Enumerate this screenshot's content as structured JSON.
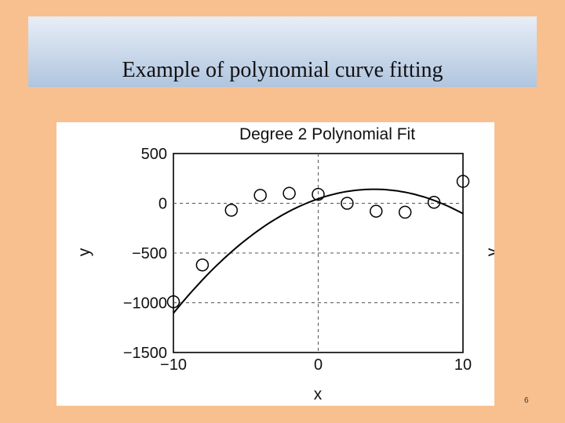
{
  "slide": {
    "title": "Example of polynomial curve fitting",
    "page_number": "6"
  },
  "chart_data": {
    "type": "scatter",
    "title": "Degree 2 Polynomial Fit",
    "xlabel": "x",
    "ylabel": "y",
    "right_label_fragment": "y",
    "xlim": [
      -10,
      10
    ],
    "ylim": [
      -1500,
      500
    ],
    "x_ticks": [
      -10,
      0,
      10
    ],
    "x_tick_labels": [
      "−10",
      "0",
      "10"
    ],
    "y_ticks": [
      500,
      0,
      -500,
      -1000,
      -1500
    ],
    "y_tick_labels": [
      "500",
      "0",
      "−500",
      "−1000",
      "−1500"
    ],
    "grid": true,
    "legend": "none",
    "series": [
      {
        "kind": "points",
        "marker": "open-circle",
        "x": [
          -10,
          -8,
          -6,
          -4,
          -2,
          0,
          2,
          4,
          6,
          8,
          10
        ],
        "y": [
          -990,
          -620,
          -70,
          80,
          100,
          90,
          0,
          -80,
          -90,
          10,
          220
        ]
      },
      {
        "kind": "curve",
        "coefficients": {
          "a": -6.5,
          "b": 50,
          "c": 45
        },
        "x_range": [
          -10,
          10
        ]
      }
    ]
  }
}
